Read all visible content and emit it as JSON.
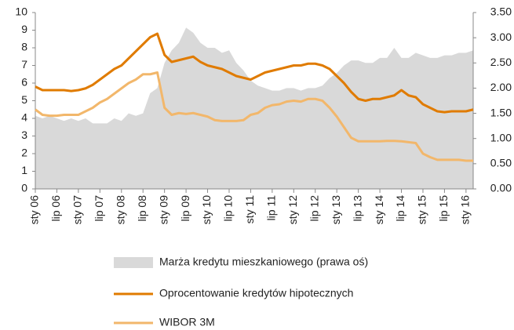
{
  "chart_data": {
    "type": "line",
    "categories": [
      "sty 06",
      null,
      null,
      "lip 06",
      null,
      null,
      "sty 07",
      null,
      null,
      "lip 07",
      null,
      null,
      "sty 08",
      null,
      null,
      "lip 08",
      null,
      null,
      "sty 09",
      null,
      null,
      "lip 09",
      null,
      null,
      "sty 10",
      null,
      null,
      "lip 10",
      null,
      null,
      "sty 11",
      null,
      null,
      "lip 11",
      null,
      null,
      "sty 12",
      null,
      null,
      "lip 12",
      null,
      null,
      "sty 13",
      null,
      null,
      "lip 13",
      null,
      null,
      "sty 14",
      null,
      null,
      "lip 14",
      null,
      null,
      "sty 15",
      null,
      null,
      "lip 15",
      null,
      null,
      "sty 16",
      null
    ],
    "series": [
      {
        "name": "Marża kredytu mieszkaniowego (prawa oś)",
        "color": "#d9d9d9",
        "kind": "area",
        "axis": "y2",
        "values": [
          1.45,
          1.4,
          1.45,
          1.4,
          1.35,
          1.4,
          1.35,
          1.4,
          1.3,
          1.3,
          1.3,
          1.4,
          1.35,
          1.5,
          1.45,
          1.5,
          1.9,
          2.0,
          2.5,
          2.75,
          2.9,
          3.2,
          3.1,
          2.9,
          2.8,
          2.8,
          2.7,
          2.75,
          2.5,
          2.35,
          2.15,
          2.05,
          2.0,
          1.95,
          1.95,
          2.0,
          2.0,
          1.95,
          2.0,
          2.0,
          2.05,
          2.2,
          2.3,
          2.45,
          2.55,
          2.55,
          2.5,
          2.5,
          2.6,
          2.6,
          2.8,
          2.6,
          2.6,
          2.7,
          2.65,
          2.6,
          2.6,
          2.65,
          2.65,
          2.7,
          2.7,
          2.75
        ]
      },
      {
        "name": "Oprocentowanie kredytów hipotecznych",
        "color": "#e07b00",
        "kind": "line",
        "values": [
          5.8,
          5.6,
          5.6,
          5.6,
          5.6,
          5.55,
          5.6,
          5.7,
          5.9,
          6.2,
          6.5,
          6.8,
          7.0,
          7.4,
          7.8,
          8.2,
          8.6,
          8.8,
          7.6,
          7.2,
          7.3,
          7.4,
          7.5,
          7.2,
          7.0,
          6.9,
          6.8,
          6.6,
          6.4,
          6.3,
          6.2,
          6.4,
          6.6,
          6.7,
          6.8,
          6.9,
          7.0,
          7.0,
          7.1,
          7.1,
          7.0,
          6.8,
          6.4,
          6.0,
          5.5,
          5.1,
          5.0,
          5.1,
          5.1,
          5.2,
          5.3,
          5.6,
          5.3,
          5.2,
          4.8,
          4.6,
          4.4,
          4.35,
          4.4,
          4.4,
          4.4,
          4.5
        ]
      },
      {
        "name": "WIBOR 3M",
        "color": "#f2b76b",
        "kind": "line",
        "values": [
          4.5,
          4.2,
          4.15,
          4.15,
          4.2,
          4.2,
          4.2,
          4.4,
          4.6,
          4.9,
          5.1,
          5.4,
          5.7,
          6.0,
          6.2,
          6.5,
          6.5,
          6.6,
          4.6,
          4.2,
          4.3,
          4.25,
          4.3,
          4.2,
          4.1,
          3.9,
          3.85,
          3.85,
          3.85,
          3.9,
          4.2,
          4.3,
          4.6,
          4.75,
          4.8,
          4.95,
          5.0,
          4.95,
          5.1,
          5.1,
          5.0,
          4.6,
          4.1,
          3.5,
          2.9,
          2.7,
          2.7,
          2.7,
          2.7,
          2.72,
          2.72,
          2.7,
          2.65,
          2.6,
          2.0,
          1.8,
          1.65,
          1.65,
          1.65,
          1.65,
          1.6,
          1.6
        ]
      }
    ],
    "ylim": [
      0,
      10
    ],
    "yticks": [
      0,
      1,
      2,
      3,
      4,
      5,
      6,
      7,
      8,
      9,
      10
    ],
    "y2lim": [
      0,
      3.5
    ],
    "y2ticks": [
      {
        "value": 0,
        "label": "0.00"
      },
      {
        "value": 0.5,
        "label": "0.50"
      },
      {
        "value": 1,
        "label": "1.00"
      },
      {
        "value": 1.5,
        "label": "1.50"
      },
      {
        "value": 2,
        "label": "2.00"
      },
      {
        "value": 2.5,
        "label": "2.50"
      },
      {
        "value": 3,
        "label": "3.00"
      },
      {
        "value": 3.5,
        "label": "3.50"
      }
    ],
    "legend": "bottom"
  }
}
